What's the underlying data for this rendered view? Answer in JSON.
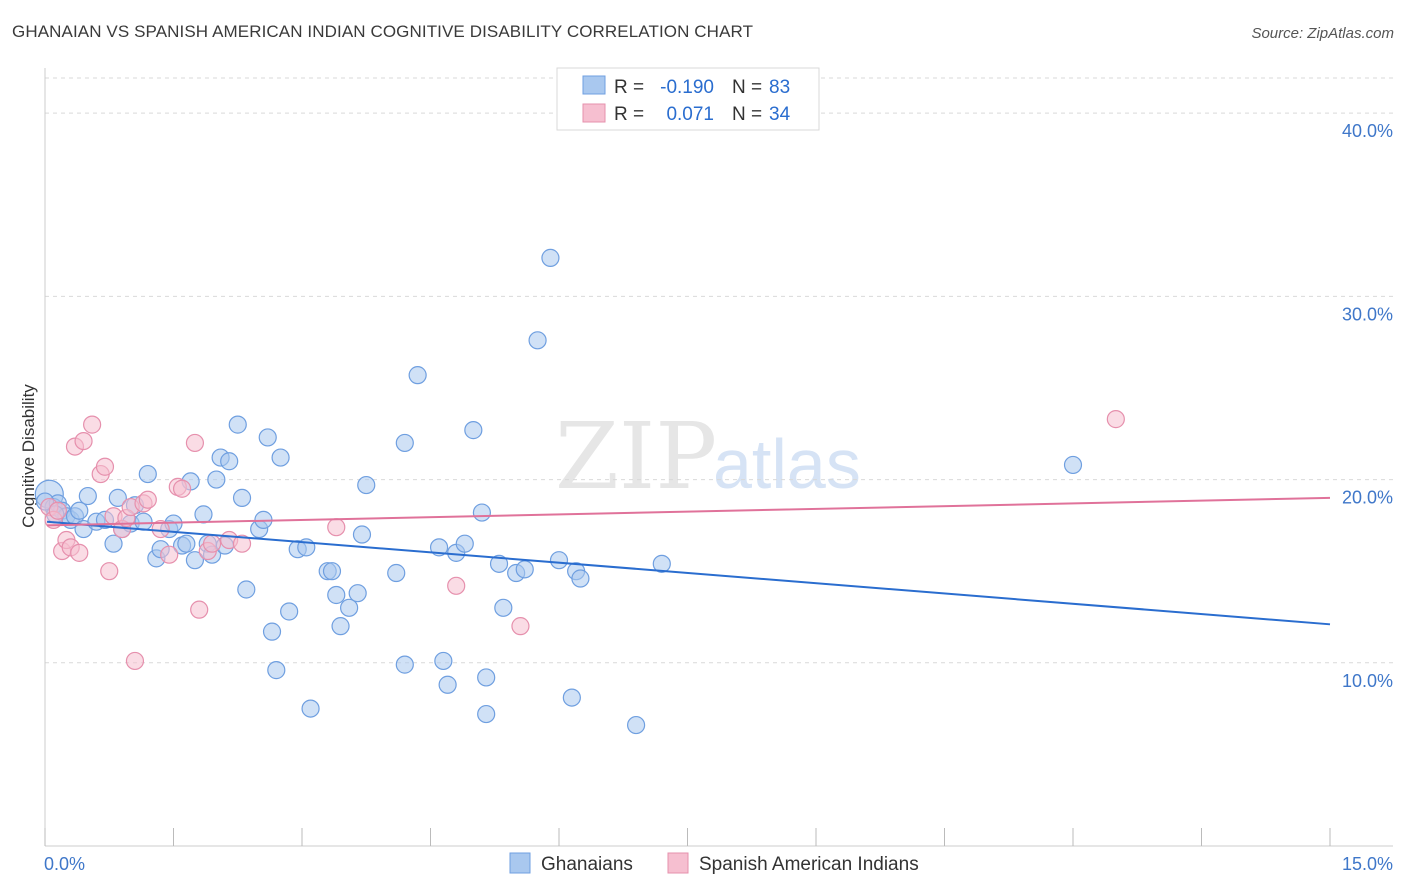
{
  "title": "GHANAIAN VS SPANISH AMERICAN INDIAN COGNITIVE DISABILITY CORRELATION CHART",
  "source": "Source: ZipAtlas.com",
  "watermark": {
    "zip": "ZIP",
    "atlas": "atlas"
  },
  "colors": {
    "blue_fill": "#a9c8ef",
    "blue_stroke": "#6f9fe0",
    "blue_line": "#2a6dcf",
    "pink_fill": "#f6bfd0",
    "pink_stroke": "#e690ad",
    "pink_line": "#e0729a",
    "grid": "#d9d9d9",
    "tick_text": "#3f77c9"
  },
  "legend": {
    "rows": [
      {
        "r_label": "R =",
        "r_value": "-0.190",
        "n_label": "N =",
        "n_value": "83"
      },
      {
        "r_label": "R =",
        "r_value": "0.071",
        "n_label": "N =",
        "n_value": "34"
      }
    ]
  },
  "chart_data": {
    "type": "scatter",
    "title": "GHANAIAN VS SPANISH AMERICAN INDIAN COGNITIVE DISABILITY CORRELATION CHART",
    "xlabel": "",
    "ylabel": "Cognitive Disability",
    "xlim": [
      0,
      15
    ],
    "ylim": [
      0,
      42
    ],
    "x_tick_labels": [
      "0.0%",
      "15.0%"
    ],
    "y_ticks": [
      10,
      20,
      30,
      40
    ],
    "y_tick_labels": [
      "10.0%",
      "20.0%",
      "30.0%",
      "40.0%"
    ],
    "grid": true,
    "legend_position": "top-center",
    "series": [
      {
        "name": "Ghanaians",
        "color": "#a9c8ef",
        "trend": {
          "x": [
            0,
            15
          ],
          "y": [
            17.7,
            12.1
          ]
        },
        "points": [
          [
            0.05,
            19.2
          ],
          [
            0.1,
            18.5
          ],
          [
            0.15,
            18.7
          ],
          [
            0.2,
            18.3
          ],
          [
            0.25,
            18.0
          ],
          [
            0.3,
            17.8
          ],
          [
            0.35,
            18.0
          ],
          [
            0.4,
            18.3
          ],
          [
            0.45,
            17.3
          ],
          [
            0.5,
            19.1
          ],
          [
            0.6,
            17.7
          ],
          [
            0.7,
            17.8
          ],
          [
            0.8,
            16.5
          ],
          [
            0.85,
            19.0
          ],
          [
            0.9,
            17.3
          ],
          [
            1.0,
            17.6
          ],
          [
            1.05,
            18.6
          ],
          [
            1.15,
            17.7
          ],
          [
            1.2,
            20.3
          ],
          [
            1.3,
            15.7
          ],
          [
            1.35,
            16.2
          ],
          [
            1.45,
            17.3
          ],
          [
            1.5,
            17.6
          ],
          [
            1.6,
            16.4
          ],
          [
            1.65,
            16.5
          ],
          [
            1.7,
            19.9
          ],
          [
            1.75,
            15.6
          ],
          [
            1.85,
            18.1
          ],
          [
            1.9,
            16.5
          ],
          [
            1.95,
            15.9
          ],
          [
            2.0,
            20.0
          ],
          [
            2.05,
            21.2
          ],
          [
            2.1,
            16.4
          ],
          [
            2.15,
            21.0
          ],
          [
            2.25,
            23.0
          ],
          [
            2.3,
            19.0
          ],
          [
            2.35,
            14.0
          ],
          [
            2.5,
            17.3
          ],
          [
            2.55,
            17.8
          ],
          [
            2.6,
            22.3
          ],
          [
            2.65,
            11.7
          ],
          [
            2.7,
            9.6
          ],
          [
            2.75,
            21.2
          ],
          [
            2.85,
            12.8
          ],
          [
            2.95,
            16.2
          ],
          [
            3.05,
            16.3
          ],
          [
            3.1,
            7.5
          ],
          [
            3.3,
            15.0
          ],
          [
            3.35,
            15.0
          ],
          [
            3.4,
            13.7
          ],
          [
            3.45,
            12.0
          ],
          [
            3.55,
            13.0
          ],
          [
            3.65,
            13.8
          ],
          [
            3.7,
            17.0
          ],
          [
            3.75,
            19.7
          ],
          [
            4.1,
            14.9
          ],
          [
            4.2,
            22.0
          ],
          [
            4.2,
            9.9
          ],
          [
            4.35,
            25.7
          ],
          [
            4.6,
            16.3
          ],
          [
            4.65,
            10.1
          ],
          [
            4.7,
            8.8
          ],
          [
            4.8,
            16.0
          ],
          [
            4.9,
            16.5
          ],
          [
            5.0,
            22.7
          ],
          [
            5.1,
            18.2
          ],
          [
            5.15,
            9.2
          ],
          [
            5.15,
            7.2
          ],
          [
            5.3,
            15.4
          ],
          [
            5.35,
            13.0
          ],
          [
            5.5,
            14.9
          ],
          [
            5.6,
            15.1
          ],
          [
            5.75,
            27.6
          ],
          [
            5.9,
            32.1
          ],
          [
            6.0,
            15.6
          ],
          [
            6.15,
            8.1
          ],
          [
            6.2,
            15.0
          ],
          [
            6.25,
            14.6
          ],
          [
            6.9,
            6.6
          ],
          [
            7.2,
            15.4
          ],
          [
            12.0,
            20.8
          ],
          [
            0.0,
            18.8
          ],
          [
            0.12,
            18.1
          ]
        ]
      },
      {
        "name": "Spanish American Indians",
        "color": "#f6bfd0",
        "trend": {
          "x": [
            0,
            15
          ],
          "y": [
            17.5,
            19.0
          ]
        },
        "points": [
          [
            0.05,
            18.5
          ],
          [
            0.1,
            17.8
          ],
          [
            0.15,
            18.3
          ],
          [
            0.2,
            16.1
          ],
          [
            0.25,
            16.7
          ],
          [
            0.3,
            16.3
          ],
          [
            0.35,
            21.8
          ],
          [
            0.4,
            16.0
          ],
          [
            0.45,
            22.1
          ],
          [
            0.55,
            23.0
          ],
          [
            0.65,
            20.3
          ],
          [
            0.7,
            20.7
          ],
          [
            0.75,
            15.0
          ],
          [
            0.8,
            18.0
          ],
          [
            0.9,
            17.3
          ],
          [
            0.95,
            17.9
          ],
          [
            1.0,
            18.5
          ],
          [
            1.05,
            10.1
          ],
          [
            1.15,
            18.7
          ],
          [
            1.2,
            18.9
          ],
          [
            1.35,
            17.3
          ],
          [
            1.45,
            15.9
          ],
          [
            1.55,
            19.6
          ],
          [
            1.6,
            19.5
          ],
          [
            1.75,
            22.0
          ],
          [
            1.8,
            12.9
          ],
          [
            1.9,
            16.1
          ],
          [
            1.95,
            16.5
          ],
          [
            2.15,
            16.7
          ],
          [
            2.3,
            16.5
          ],
          [
            3.4,
            17.4
          ],
          [
            4.8,
            14.2
          ],
          [
            5.55,
            12.0
          ],
          [
            12.5,
            23.3
          ]
        ]
      }
    ]
  },
  "bottom_legend": {
    "items": [
      {
        "label": "Ghanaians"
      },
      {
        "label": "Spanish American Indians"
      }
    ]
  }
}
